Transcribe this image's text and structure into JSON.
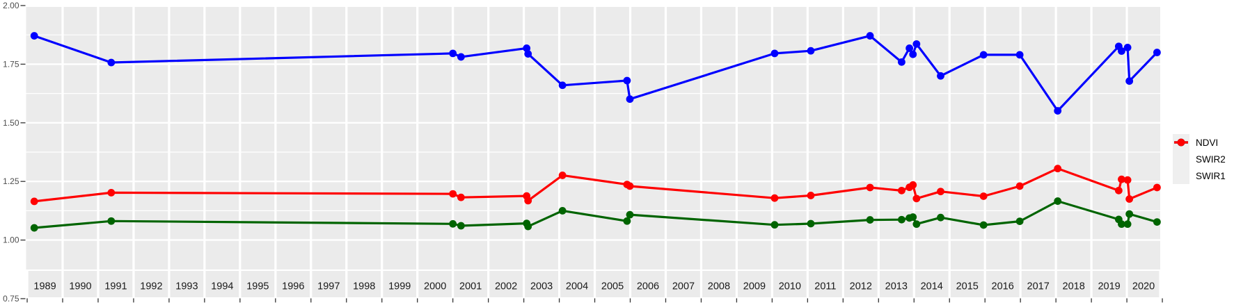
{
  "chart_data": {
    "type": "line",
    "title": "",
    "xlabel": "",
    "ylabel": "",
    "x_axis": {
      "year_labels": [
        "1989",
        "1990",
        "1991",
        "1992",
        "1993",
        "1994",
        "1995",
        "1996",
        "1997",
        "1998",
        "1999",
        "2000",
        "2001",
        "2002",
        "2003",
        "2004",
        "2005",
        "2006",
        "2007",
        "2008",
        "2009",
        "2010",
        "2011",
        "2012",
        "2013",
        "2014",
        "2015",
        "2016",
        "2017",
        "2018",
        "2019",
        "2020"
      ],
      "range": [
        1988.97,
        2020.94
      ]
    },
    "y_axis": {
      "tick_labels": [
        "2.00",
        "1.75",
        "1.50",
        "1.25",
        "1.00",
        "0.75"
      ],
      "tick_values": [
        2.0,
        1.75,
        1.5,
        1.25,
        1.0,
        0.75
      ],
      "range": [
        0.75,
        2.0
      ],
      "minor_values": [
        1.875,
        1.625,
        1.375,
        1.125
      ]
    },
    "grid": "major+minor",
    "panel_bg": "#ebebeb",
    "strip_bg": "#ebebeb",
    "grid_color": "#ffffff",
    "axis_text_color": "#4d4d4d",
    "strip_text_color": "#1a1a1a",
    "tick_color": "#333333",
    "series": [
      {
        "name": "NDVI",
        "color": "#0000ff",
        "points": [
          [
            1989.2,
            1.871
          ],
          [
            1991.37,
            1.757
          ],
          [
            2001.0,
            1.796
          ],
          [
            2001.23,
            1.781
          ],
          [
            2003.08,
            1.818
          ],
          [
            2003.12,
            1.794
          ],
          [
            2004.09,
            1.66
          ],
          [
            2005.91,
            1.68
          ],
          [
            2005.99,
            1.601
          ],
          [
            2010.07,
            1.796
          ],
          [
            2011.09,
            1.807
          ],
          [
            2012.76,
            1.871
          ],
          [
            2013.65,
            1.759
          ],
          [
            2013.87,
            1.818
          ],
          [
            2013.97,
            1.792
          ],
          [
            2014.07,
            1.836
          ],
          [
            2014.75,
            1.7
          ],
          [
            2015.96,
            1.79
          ],
          [
            2016.98,
            1.79
          ],
          [
            2018.05,
            1.551
          ],
          [
            2019.77,
            1.826
          ],
          [
            2019.85,
            1.806
          ],
          [
            2020.02,
            1.821
          ],
          [
            2020.07,
            1.678
          ],
          [
            2020.85,
            1.8
          ]
        ]
      },
      {
        "name": "SWIR2",
        "color": "#006400",
        "points": [
          [
            1989.2,
            1.052
          ],
          [
            1991.37,
            1.081
          ],
          [
            2001.0,
            1.069
          ],
          [
            2001.23,
            1.061
          ],
          [
            2003.08,
            1.071
          ],
          [
            2003.12,
            1.058
          ],
          [
            2004.09,
            1.125
          ],
          [
            2005.91,
            1.081
          ],
          [
            2005.99,
            1.108
          ],
          [
            2010.07,
            1.065
          ],
          [
            2011.09,
            1.07
          ],
          [
            2012.76,
            1.086
          ],
          [
            2013.65,
            1.087
          ],
          [
            2013.87,
            1.094
          ],
          [
            2013.97,
            1.098
          ],
          [
            2014.07,
            1.068
          ],
          [
            2014.75,
            1.096
          ],
          [
            2015.96,
            1.064
          ],
          [
            2016.98,
            1.08
          ],
          [
            2018.05,
            1.166
          ],
          [
            2019.77,
            1.088
          ],
          [
            2019.85,
            1.068
          ],
          [
            2020.02,
            1.068
          ],
          [
            2020.07,
            1.111
          ],
          [
            2020.85,
            1.077
          ]
        ]
      },
      {
        "name": "SWIR1",
        "color": "#ff0000",
        "points": [
          [
            1989.2,
            1.165
          ],
          [
            1991.37,
            1.202
          ],
          [
            2001.0,
            1.197
          ],
          [
            2001.23,
            1.182
          ],
          [
            2003.08,
            1.188
          ],
          [
            2003.12,
            1.168
          ],
          [
            2004.09,
            1.276
          ],
          [
            2005.91,
            1.237
          ],
          [
            2005.99,
            1.23
          ],
          [
            2010.07,
            1.179
          ],
          [
            2011.09,
            1.19
          ],
          [
            2012.76,
            1.224
          ],
          [
            2013.65,
            1.211
          ],
          [
            2013.87,
            1.225
          ],
          [
            2013.97,
            1.235
          ],
          [
            2014.07,
            1.177
          ],
          [
            2014.75,
            1.207
          ],
          [
            2015.96,
            1.187
          ],
          [
            2016.98,
            1.23
          ],
          [
            2018.05,
            1.305
          ],
          [
            2019.77,
            1.211
          ],
          [
            2019.85,
            1.259
          ],
          [
            2020.02,
            1.256
          ],
          [
            2020.07,
            1.175
          ],
          [
            2020.85,
            1.224
          ]
        ]
      }
    ],
    "legend": {
      "position": "right",
      "entries": [
        {
          "label": "NDVI",
          "color": "#0000ff"
        },
        {
          "label": "SWIR2",
          "color": "#006400"
        },
        {
          "label": "SWIR1",
          "color": "#ff0000"
        }
      ]
    }
  }
}
